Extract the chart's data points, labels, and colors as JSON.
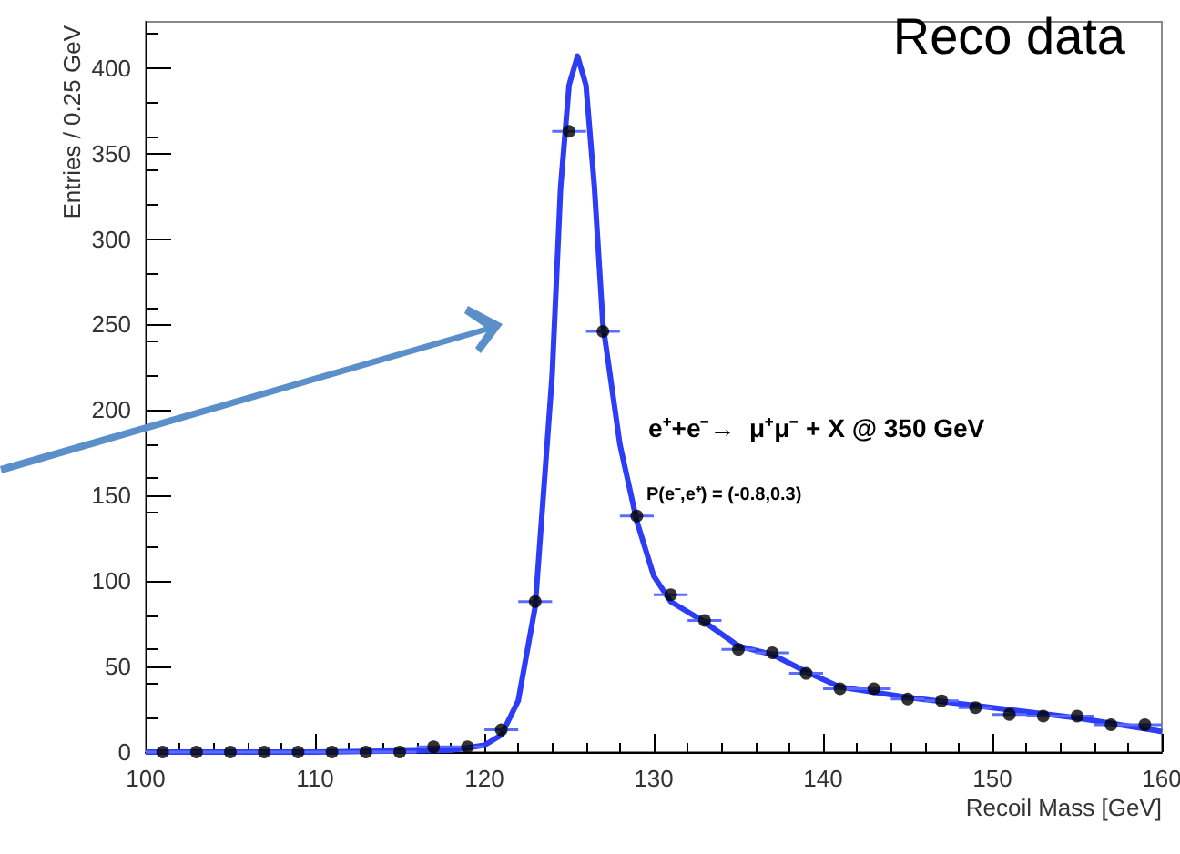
{
  "chart_data": {
    "type": "scatter",
    "xlabel": "Recoil Mass [GeV]",
    "ylabel": "Entries / 0.25 GeV",
    "annotations": [
      "Reco data",
      "e⁺+e⁻→  μ⁺μ⁻ + X @ 350 GeV",
      "P(e⁻,e⁺) = (-0.8,0.3)"
    ],
    "xlim": [
      100,
      160
    ],
    "xticks": [
      100,
      110,
      120,
      130,
      140,
      150,
      160
    ],
    "ylim": [
      0,
      427
    ],
    "yticks": [
      0,
      50,
      100,
      150,
      200,
      250,
      300,
      350,
      400
    ],
    "grid": false,
    "marker": "circle",
    "series": [
      {
        "color": "#000000",
        "x": [
          101,
          103,
          105,
          107,
          109,
          111,
          113,
          115,
          117,
          119,
          121,
          123,
          125,
          127,
          129,
          131,
          133,
          135,
          137,
          139,
          141,
          143,
          145,
          147,
          149,
          151,
          153,
          155,
          157,
          159
        ],
        "values": [
          0,
          0,
          0,
          0,
          0,
          0,
          0,
          0,
          3,
          3,
          13,
          88,
          363,
          246,
          138,
          92,
          77,
          60,
          58,
          46,
          37,
          37,
          31,
          30,
          26,
          22,
          21,
          21,
          16,
          16
        ],
        "xerrors": [
          1,
          1,
          1,
          1,
          1,
          1,
          1,
          1,
          1,
          1,
          1,
          1,
          1,
          1,
          1,
          1,
          1,
          1,
          1,
          1,
          1,
          1,
          1,
          1,
          1,
          1,
          1,
          1,
          1,
          1
        ]
      },
      {
        "type": "line",
        "color": "#2d3cf5",
        "marker": "none",
        "x": [
          100,
          110,
          118,
          120,
          121,
          122,
          123,
          124,
          124.5,
          125,
          125.5,
          126,
          126.5,
          127,
          128,
          129,
          130,
          131,
          133,
          135,
          137,
          139,
          141,
          145,
          150,
          155,
          160
        ],
        "values": [
          0,
          0,
          1,
          4,
          10,
          30,
          85,
          220,
          330,
          390,
          407,
          390,
          330,
          250,
          180,
          135,
          103,
          88,
          76,
          62,
          57,
          47,
          38,
          32,
          26,
          20,
          12
        ]
      }
    ]
  }
}
